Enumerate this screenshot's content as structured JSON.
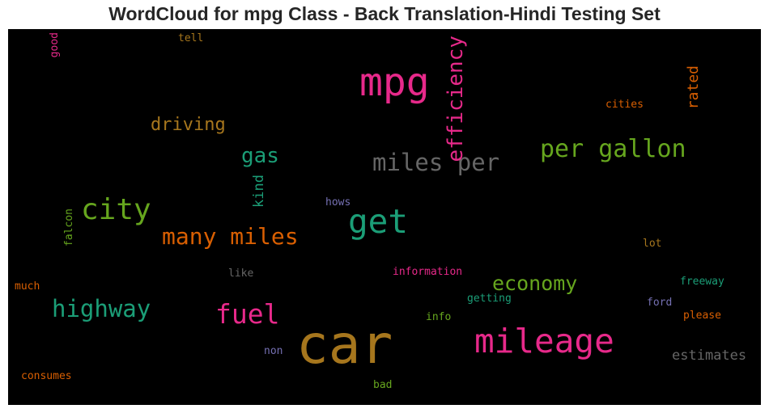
{
  "chart_data": {
    "type": "wordcloud",
    "title": "WordCloud for mpg Class - Back Translation-Hindi Testing Set",
    "background": "#000000",
    "words": [
      {
        "text": "car",
        "weight": 1.0,
        "color": "#a6761d",
        "orientation": "horizontal"
      },
      {
        "text": "mpg",
        "weight": 0.72,
        "color": "#e7298a",
        "orientation": "horizontal"
      },
      {
        "text": "mileage",
        "weight": 0.62,
        "color": "#e7298a",
        "orientation": "horizontal"
      },
      {
        "text": "get",
        "weight": 0.62,
        "color": "#1b9e77",
        "orientation": "horizontal"
      },
      {
        "text": "city",
        "weight": 0.55,
        "color": "#66a61e",
        "orientation": "horizontal"
      },
      {
        "text": "fuel",
        "weight": 0.5,
        "color": "#e7298a",
        "orientation": "horizontal"
      },
      {
        "text": "per gallon",
        "weight": 0.46,
        "color": "#66a61e",
        "orientation": "horizontal"
      },
      {
        "text": "miles per",
        "weight": 0.44,
        "color": "#666666",
        "orientation": "horizontal"
      },
      {
        "text": "highway",
        "weight": 0.44,
        "color": "#1b9e77",
        "orientation": "horizontal"
      },
      {
        "text": "many miles",
        "weight": 0.42,
        "color": "#d95f02",
        "orientation": "horizontal"
      },
      {
        "text": "efficiency",
        "weight": 0.4,
        "color": "#e7298a",
        "orientation": "vertical"
      },
      {
        "text": "gas",
        "weight": 0.4,
        "color": "#1b9e77",
        "orientation": "horizontal"
      },
      {
        "text": "economy",
        "weight": 0.38,
        "color": "#66a61e",
        "orientation": "horizontal"
      },
      {
        "text": "driving",
        "weight": 0.33,
        "color": "#a6761d",
        "orientation": "horizontal"
      },
      {
        "text": "rated",
        "weight": 0.28,
        "color": "#d95f02",
        "orientation": "vertical"
      },
      {
        "text": "estimates",
        "weight": 0.26,
        "color": "#666666",
        "orientation": "horizontal"
      },
      {
        "text": "kind",
        "weight": 0.25,
        "color": "#1b9e77",
        "orientation": "vertical"
      },
      {
        "text": "cities",
        "weight": 0.2,
        "color": "#d95f02",
        "orientation": "horizontal"
      },
      {
        "text": "information",
        "weight": 0.2,
        "color": "#e7298a",
        "orientation": "horizontal"
      },
      {
        "text": "freeway",
        "weight": 0.2,
        "color": "#1b9e77",
        "orientation": "horizontal"
      },
      {
        "text": "please",
        "weight": 0.2,
        "color": "#d95f02",
        "orientation": "horizontal"
      },
      {
        "text": "consumes",
        "weight": 0.2,
        "color": "#d95f02",
        "orientation": "horizontal"
      },
      {
        "text": "getting",
        "weight": 0.2,
        "color": "#1b9e77",
        "orientation": "horizontal"
      },
      {
        "text": "good",
        "weight": 0.19,
        "color": "#e7298a",
        "orientation": "vertical"
      },
      {
        "text": "tell",
        "weight": 0.19,
        "color": "#a6761d",
        "orientation": "horizontal"
      },
      {
        "text": "hows",
        "weight": 0.19,
        "color": "#7570b3",
        "orientation": "horizontal"
      },
      {
        "text": "falcon",
        "weight": 0.19,
        "color": "#66a61e",
        "orientation": "vertical"
      },
      {
        "text": "like",
        "weight": 0.19,
        "color": "#666666",
        "orientation": "horizontal"
      },
      {
        "text": "lot",
        "weight": 0.19,
        "color": "#a6761d",
        "orientation": "horizontal"
      },
      {
        "text": "much",
        "weight": 0.19,
        "color": "#d95f02",
        "orientation": "horizontal"
      },
      {
        "text": "ford",
        "weight": 0.19,
        "color": "#7570b3",
        "orientation": "horizontal"
      },
      {
        "text": "info",
        "weight": 0.19,
        "color": "#66a61e",
        "orientation": "horizontal"
      },
      {
        "text": "non",
        "weight": 0.19,
        "color": "#7570b3",
        "orientation": "horizontal"
      },
      {
        "text": "bad",
        "weight": 0.19,
        "color": "#66a61e",
        "orientation": "horizontal"
      }
    ]
  }
}
